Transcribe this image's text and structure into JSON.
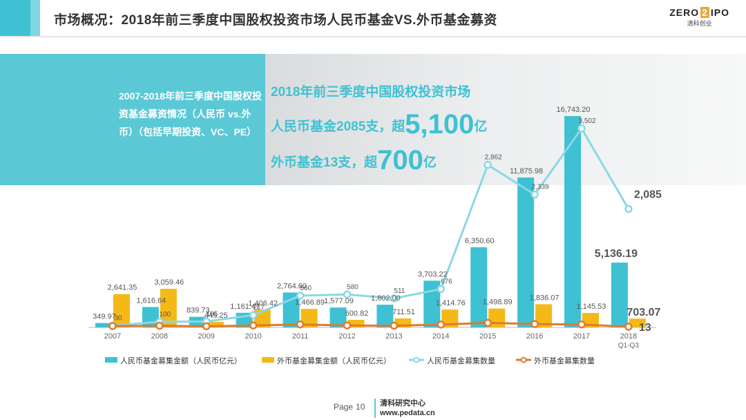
{
  "header": {
    "title": "市场概况：2018年前三季度中国股权投资市场人民币基金VS.外币基金募资",
    "logo_prefix": "ZERO",
    "logo_mark": "2",
    "logo_suffix": "IPO",
    "logo_sub": "清科创业"
  },
  "hero": {
    "description": "2007-2018年前三季度中国股权投资基金募资情况（人民币 vs.外币）（包括早期投资、VC、PE）",
    "headline_1": "2018年前三季度中国股权投资市场",
    "headline_2_pre": "人民币基金2085支，超",
    "headline_2_big": "5,100",
    "headline_2_post": "亿",
    "headline_3_pre": "外币基金13支，超",
    "headline_3_big": "700",
    "headline_3_post": "亿"
  },
  "colors": {
    "rmb_amount": "#3ec1d3",
    "fx_amount": "#f5b917",
    "rmb_count": "#8ad8e4",
    "fx_count": "#e07a2e"
  },
  "chart_data": {
    "type": "bar",
    "categories": [
      "2007",
      "2008",
      "2009",
      "2010",
      "2011",
      "2012",
      "2013",
      "2014",
      "2015",
      "2016",
      "2017",
      "2018\nQ1-Q3"
    ],
    "series": [
      {
        "name": "人民币基金募集金额（人民币亿元）",
        "type": "bar",
        "values": [
          349.97,
          1616.64,
          839.73,
          1161.47,
          2764.6,
          1577.09,
          1802.0,
          3703.22,
          6350.6,
          11875.98,
          16743.2,
          5136.19
        ],
        "labels": [
          "349.97",
          "1,616.64",
          "839.73",
          "1,161.47",
          "2,764.60",
          "1,577.09",
          "1,802.00",
          "3,703.22",
          "6,350.60",
          "11,875.98",
          "16,743.20",
          "5,136.19"
        ]
      },
      {
        "name": "外币基金募集金额（人民币亿元）",
        "type": "bar",
        "values": [
          2641.35,
          3059.46,
          445.25,
          1406.42,
          1466.89,
          600.82,
          711.51,
          1414.76,
          1498.89,
          1836.07,
          1145.53,
          703.07
        ],
        "labels": [
          "2,641.35",
          "3,059.46",
          "445.25",
          "1,406.42",
          "1,466.89",
          "600.82",
          "711.51",
          "1,414.76",
          "1,498.89",
          "1,836.07",
          "1,145.53",
          "703.07"
        ]
      },
      {
        "name": "人民币基金募集数量",
        "type": "line",
        "values": [
          30,
          100,
          105,
          217,
          560,
          580,
          511,
          676,
          2862,
          2339,
          3502,
          2085
        ],
        "labels": [
          "30",
          "100",
          "105",
          "217",
          "560",
          "580",
          "511",
          "676",
          "2,862",
          "2,339",
          "3,502",
          "2,085"
        ]
      },
      {
        "name": "外币基金募集数量",
        "type": "line",
        "values": [
          25,
          30,
          20,
          35,
          52,
          35,
          30,
          50,
          80,
          60,
          52,
          13
        ],
        "labels": [
          "",
          "",
          "",
          "",
          "",
          "",
          "",
          "",
          "",
          "",
          "",
          "13"
        ]
      }
    ]
  },
  "footer": {
    "page_label": "Page",
    "page_number": "10",
    "org_name": "清科研究中心",
    "org_url": "www.pedata.cn"
  }
}
